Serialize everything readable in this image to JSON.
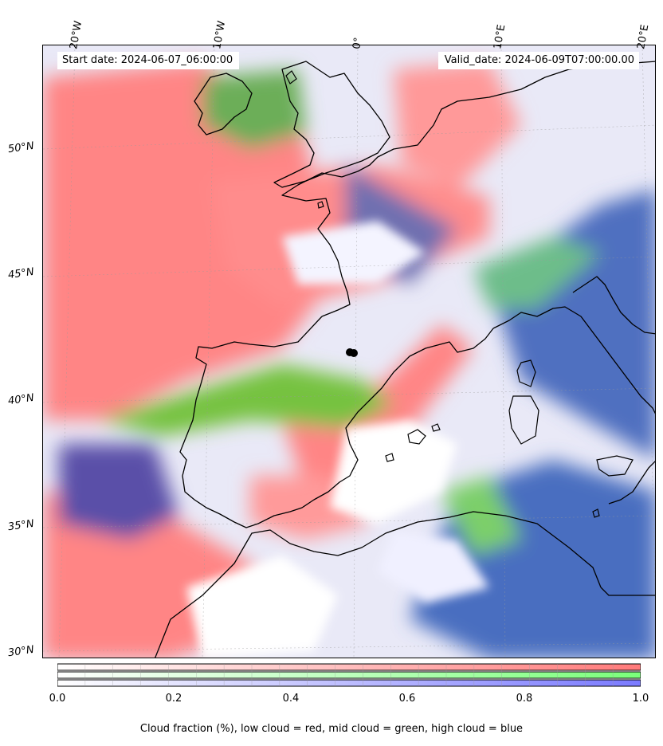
{
  "header": {
    "start_date": "Start date: 2024-06-07_06:00:00",
    "valid_date": "Valid_date: 2024-06-09T07:00:00.00"
  },
  "axes": {
    "lon_labels": [
      "20°W",
      "10°W",
      "0°",
      "10°E",
      "20°E"
    ],
    "lat_labels": [
      "50°N",
      "45°N",
      "40°N",
      "35°N",
      "30°N"
    ]
  },
  "colorbar": {
    "ticks": [
      "0.0",
      "0.2",
      "0.4",
      "0.6",
      "0.8",
      "1.0"
    ],
    "label": "Cloud fraction (%), low cloud = red, mid cloud = green, high cloud = blue",
    "colors": {
      "low": "#ff7a7a",
      "mid": "#7aff7a",
      "high": "#7a7aff"
    }
  },
  "map": {
    "low_cloud_color": "#ff8080",
    "mid_cloud_color": "#6fbf3a",
    "high_cloud_color": "#3f6fbf",
    "coastline_color": "#000000"
  }
}
